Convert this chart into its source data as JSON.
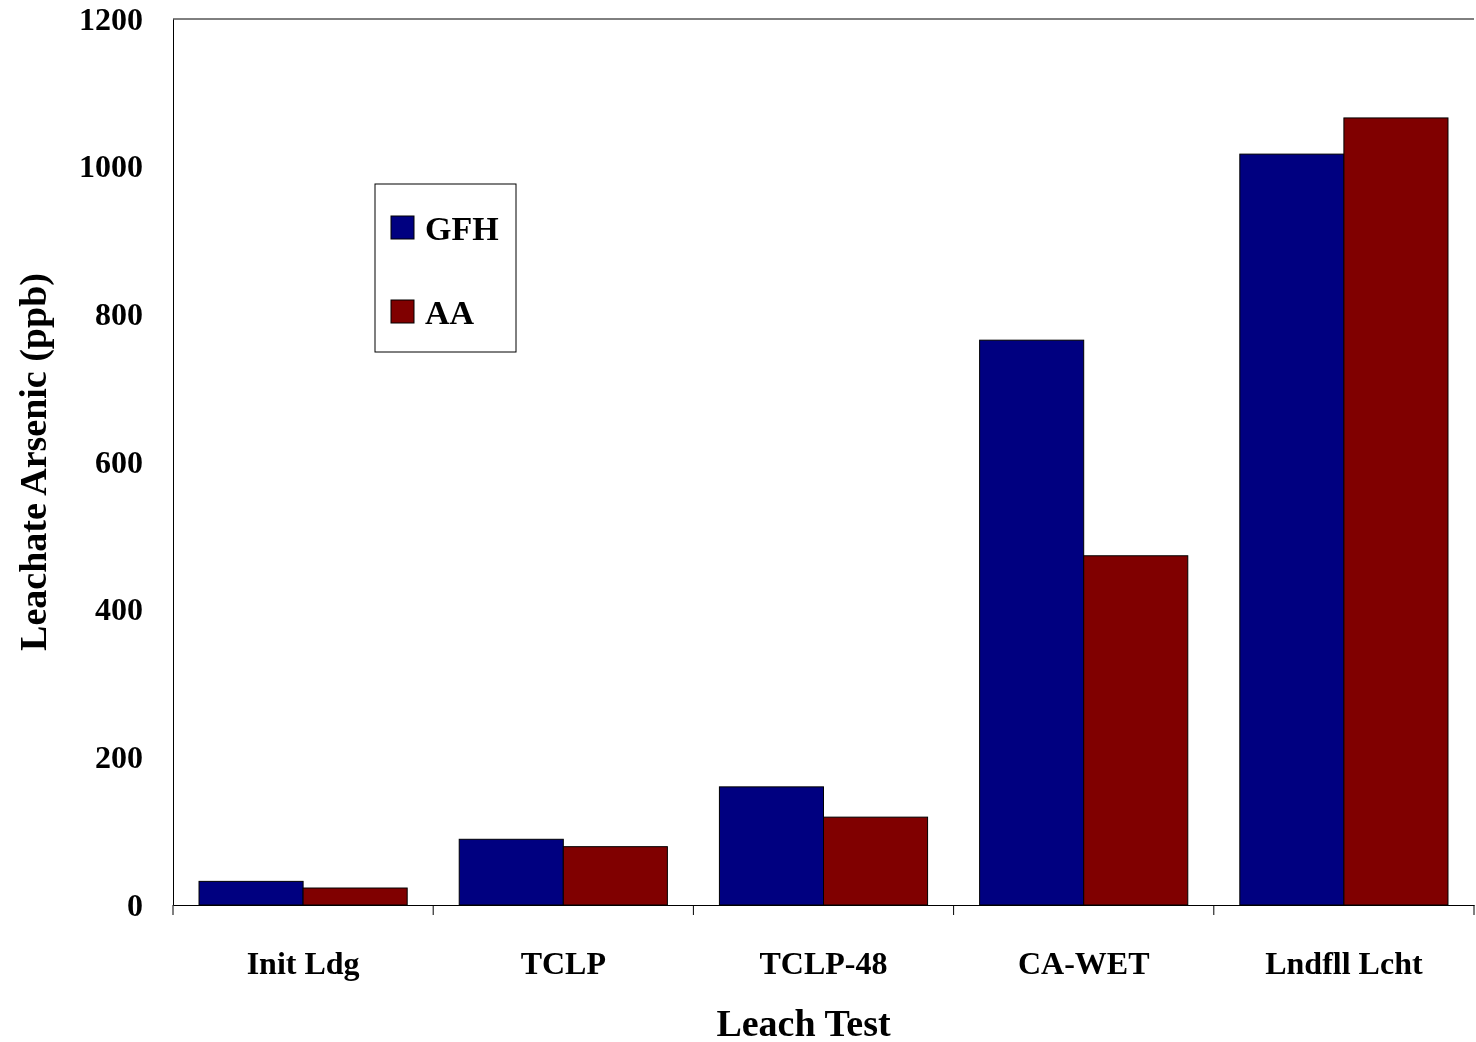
{
  "chart_data": {
    "type": "bar",
    "xlabel": "Leach Test",
    "ylabel": "Leachate Arsenic (ppb)",
    "categories": [
      "Init Ldg",
      "TCLP",
      "TCLP-48",
      "CA-WET",
      "Lndfll Lcht"
    ],
    "series": [
      {
        "name": "GFH",
        "color": "#000080",
        "values": [
          32,
          89,
          160,
          765,
          1017
        ]
      },
      {
        "name": "AA",
        "color": "#800000",
        "values": [
          23,
          79,
          119,
          473,
          1066
        ]
      }
    ],
    "ylim": [
      0,
      1200
    ],
    "yticks": [
      0,
      200,
      400,
      600,
      800,
      1000,
      1200
    ],
    "grid": false,
    "legend": "top left"
  }
}
